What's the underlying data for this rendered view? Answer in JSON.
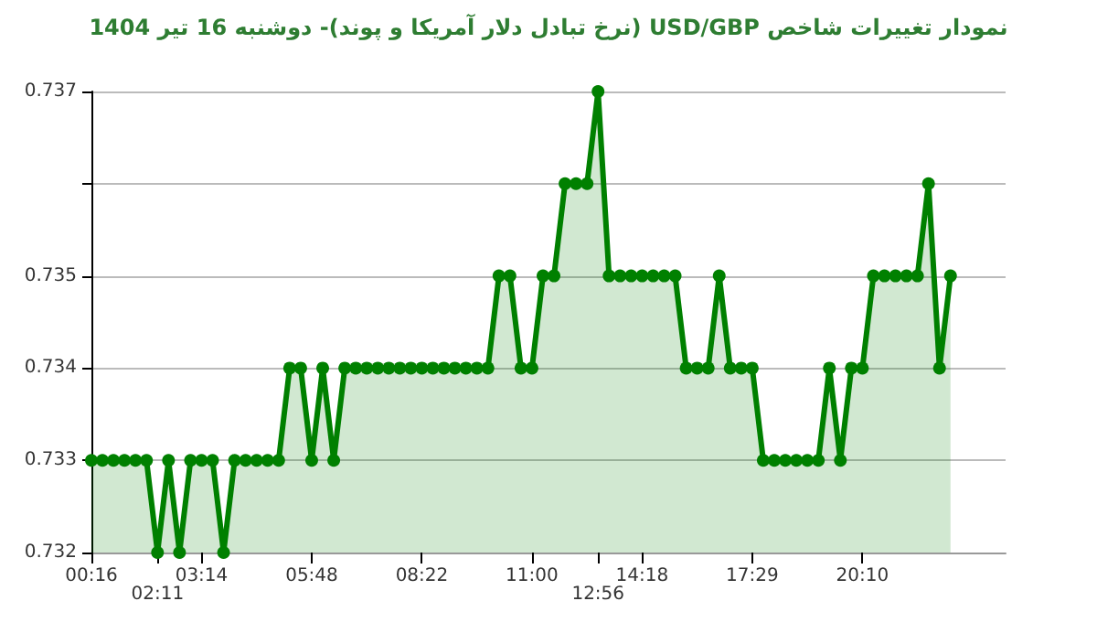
{
  "chart_data": {
    "type": "area",
    "title": "نمودار تغییرات شاخص USD/GBP (نرخ تبادل دلار آمریکا و پوند)- دوشنبه  16 تیر 1404",
    "categories": [
      "00:16",
      null,
      null,
      null,
      null,
      null,
      "02:11",
      null,
      null,
      null,
      "03:14",
      null,
      null,
      null,
      null,
      null,
      null,
      null,
      null,
      null,
      "05:48",
      null,
      null,
      null,
      null,
      null,
      null,
      null,
      null,
      null,
      "08:22",
      null,
      null,
      null,
      null,
      null,
      null,
      null,
      null,
      null,
      "11:00",
      null,
      null,
      null,
      null,
      null,
      "12:56",
      null,
      null,
      null,
      "14:18",
      null,
      null,
      null,
      null,
      null,
      null,
      null,
      null,
      null,
      "17:29",
      null,
      null,
      null,
      null,
      null,
      null,
      null,
      null,
      null,
      "20:10",
      null,
      null,
      null,
      null,
      null,
      null,
      null,
      null,
      null,
      null,
      null,
      null,
      null
    ],
    "series": [
      {
        "color": "#008000",
        "values": [
          0.733,
          0.733,
          0.733,
          0.733,
          0.733,
          0.733,
          0.732,
          0.733,
          0.732,
          0.733,
          0.733,
          0.733,
          0.732,
          0.733,
          0.733,
          0.733,
          0.733,
          0.733,
          0.734,
          0.734,
          0.733,
          0.734,
          0.733,
          0.734,
          0.734,
          0.734,
          0.734,
          0.734,
          0.734,
          0.734,
          0.734,
          0.734,
          0.734,
          0.734,
          0.734,
          0.734,
          0.734,
          0.735,
          0.735,
          0.734,
          0.734,
          0.735,
          0.735,
          0.736,
          0.736,
          0.736,
          0.737,
          0.735,
          0.735,
          0.735,
          0.735,
          0.735,
          0.735,
          0.735,
          0.734,
          0.734,
          0.734,
          0.735,
          0.734,
          0.734,
          0.734,
          0.733,
          0.733,
          0.733,
          0.733,
          0.733,
          0.733,
          0.734,
          0.733,
          0.734,
          0.734,
          0.735,
          0.735,
          0.735,
          0.735,
          0.735,
          0.736,
          0.734,
          0.735,
          null,
          null,
          null,
          null,
          null
        ]
      }
    ],
    "ylim": [
      0.732,
      0.737
    ],
    "yticks": [
      0.732,
      0.733,
      0.734,
      0.735,
      {
        "value": 0.736,
        "label": null
      },
      0.737
    ],
    "grid": "y",
    "marker": "circle",
    "line_style": "solid"
  }
}
